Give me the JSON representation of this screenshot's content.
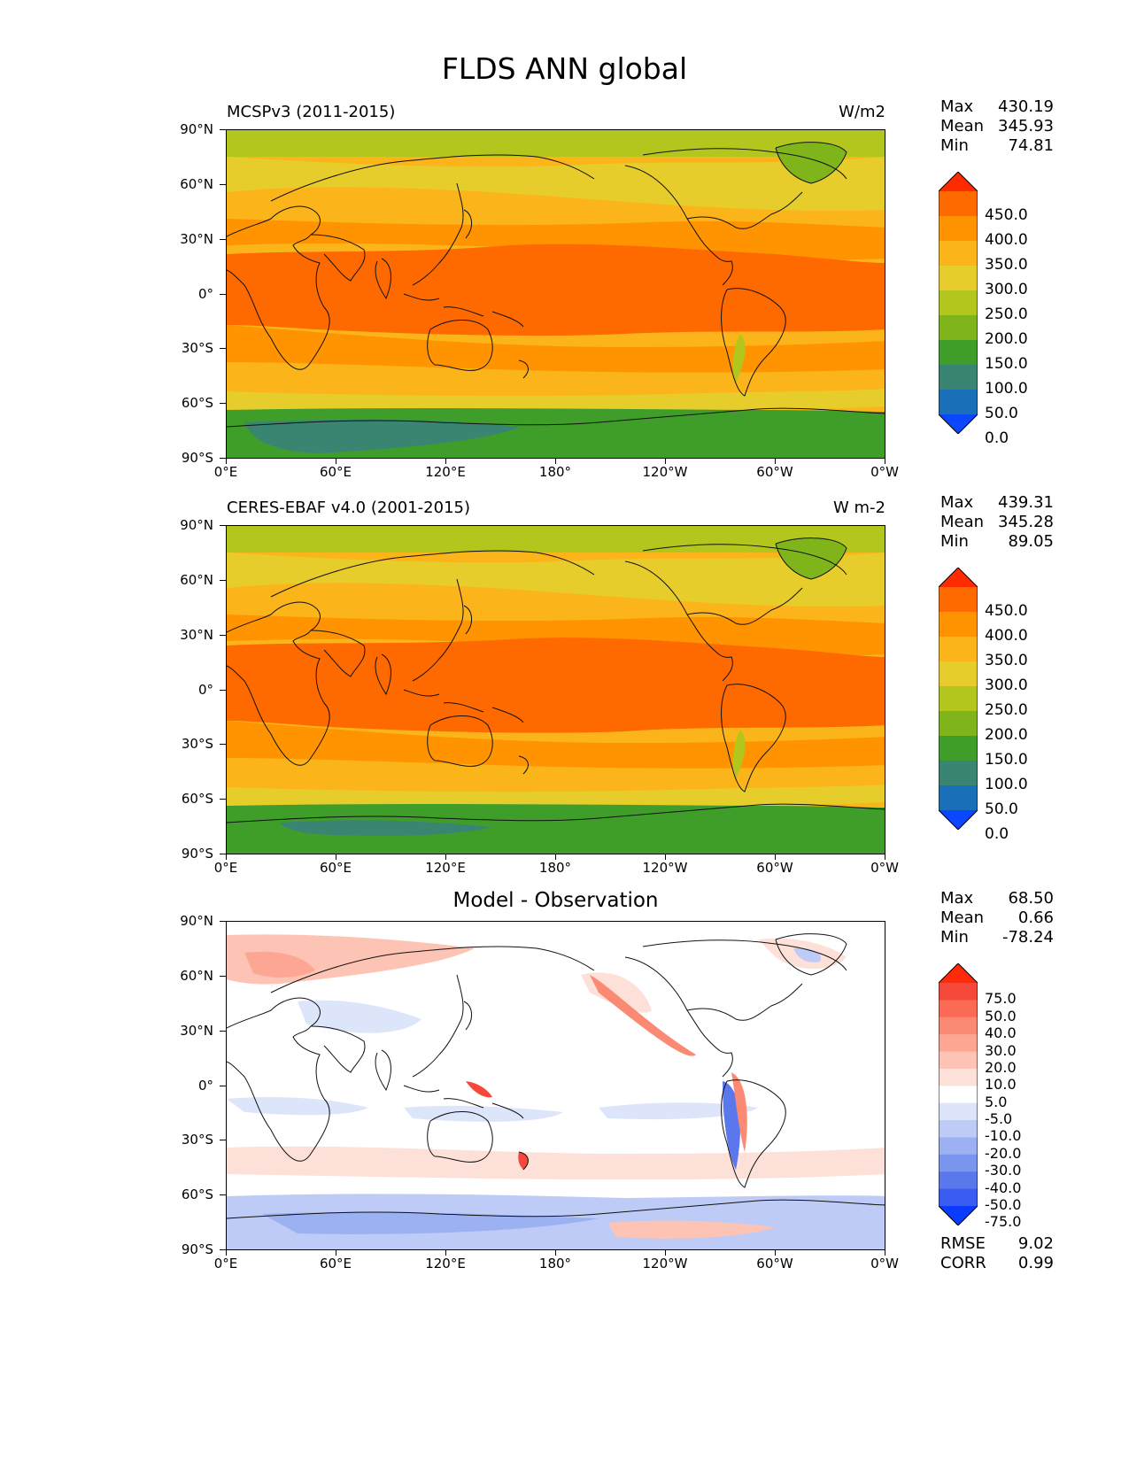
{
  "title": "FLDS ANN global",
  "axes": {
    "lat_labels": [
      "90°N",
      "60°N",
      "30°N",
      "0°",
      "30°S",
      "60°S",
      "90°S"
    ],
    "lon_labels": [
      "0°E",
      "60°E",
      "120°E",
      "180°",
      "120°W",
      "60°W",
      "0°W"
    ]
  },
  "panels": [
    {
      "title_left": "MCSPv3 (2011-2015)",
      "title_right": "W/m2",
      "stats": [
        {
          "label": "Max",
          "value": "430.19"
        },
        {
          "label": "Mean",
          "value": "345.93"
        },
        {
          "label": "Min",
          "value": "74.81"
        }
      ],
      "colorbar": {
        "labels": [
          "450.0",
          "400.0",
          "350.0",
          "300.0",
          "250.0",
          "200.0",
          "150.0",
          "100.0",
          "50.0",
          "0.0"
        ],
        "colors": [
          "#ff2a00",
          "#ff6a00",
          "#ff9400",
          "#fbb51a",
          "#e7cd2b",
          "#b3c61d",
          "#7fb51b",
          "#3f9e2a",
          "#3a8572",
          "#1a70b8",
          "#0a47ff"
        ]
      }
    },
    {
      "title_left": "CERES-EBAF v4.0 (2001-2015)",
      "title_right": "W m-2",
      "stats": [
        {
          "label": "Max",
          "value": "439.31"
        },
        {
          "label": "Mean",
          "value": "345.28"
        },
        {
          "label": "Min",
          "value": "89.05"
        }
      ],
      "colorbar": {
        "labels": [
          "450.0",
          "400.0",
          "350.0",
          "300.0",
          "250.0",
          "200.0",
          "150.0",
          "100.0",
          "50.0",
          "0.0"
        ],
        "colors": [
          "#ff2a00",
          "#ff6a00",
          "#ff9400",
          "#fbb51a",
          "#e7cd2b",
          "#b3c61d",
          "#7fb51b",
          "#3f9e2a",
          "#3a8572",
          "#1a70b8",
          "#0a47ff"
        ]
      }
    },
    {
      "title_center": "Model - Observation",
      "stats": [
        {
          "label": "Max",
          "value": "68.50"
        },
        {
          "label": "Mean",
          "value": "0.66"
        },
        {
          "label": "Min",
          "value": "-78.24"
        }
      ],
      "extra": [
        {
          "label": "RMSE",
          "value": "9.02"
        },
        {
          "label": "CORR",
          "value": "0.99"
        }
      ],
      "colorbar": {
        "labels": [
          "75.0",
          "50.0",
          "40.0",
          "30.0",
          "20.0",
          "10.0",
          "5.0",
          "-5.0",
          "-10.0",
          "-20.0",
          "-30.0",
          "-40.0",
          "-50.0",
          "-75.0"
        ],
        "colors": [
          "#ff2a0a",
          "#f5473a",
          "#fa6a55",
          "#fb8a74",
          "#fca693",
          "#fdc3b5",
          "#fde0d8",
          "#ffffff",
          "#dde5fb",
          "#bdcbf6",
          "#9cb1f2",
          "#7a95ee",
          "#5a78ec",
          "#3a5cf2",
          "#0a3cff"
        ]
      }
    }
  ]
}
